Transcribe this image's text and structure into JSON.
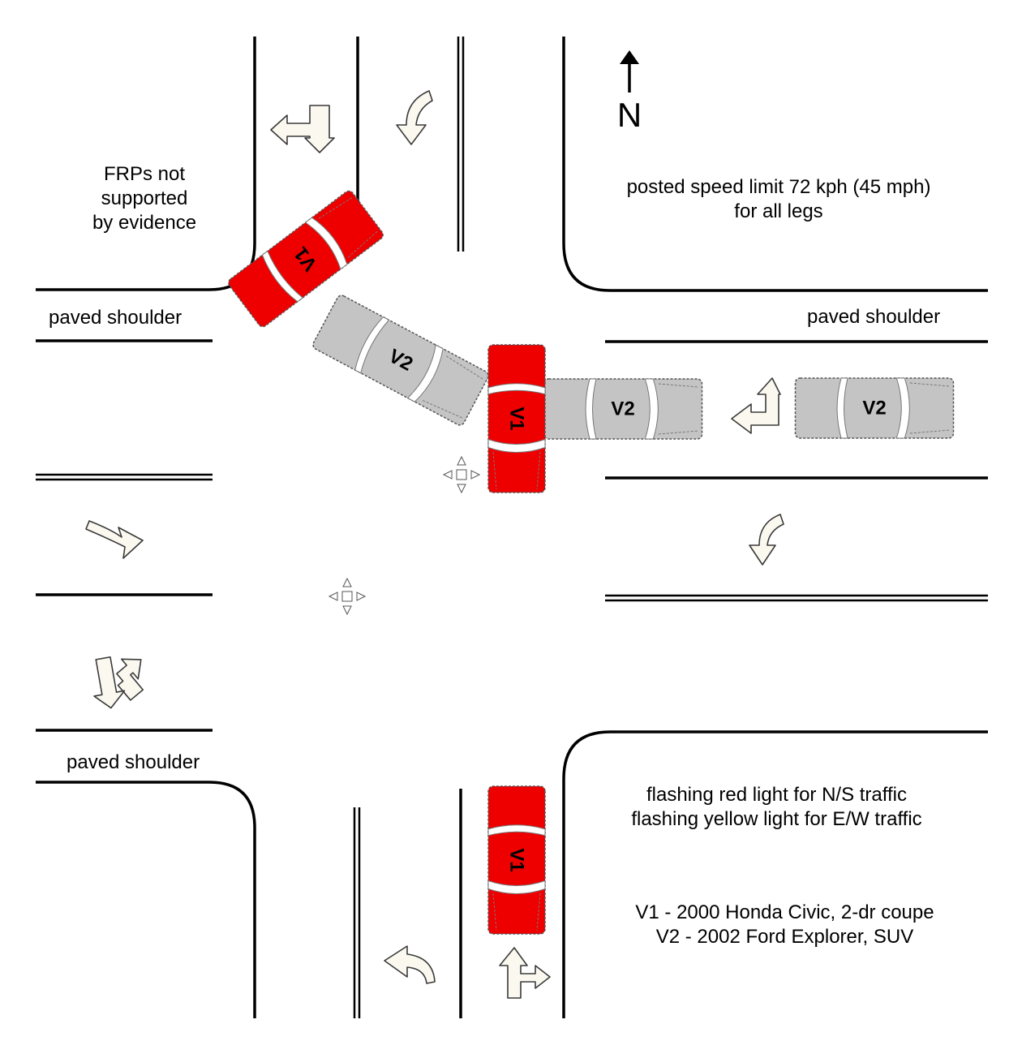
{
  "notes": {
    "frps": [
      "FRPs not",
      "supported",
      "by evidence"
    ],
    "speed": [
      "posted speed limit 72 kph (45 mph)",
      "for all legs"
    ],
    "lights": [
      "flashing red light for N/S traffic",
      "flashing yellow light for E/W traffic"
    ],
    "vehicles": [
      "V1 - 2000 Honda Civic, 2-dr coupe",
      "V2 - 2002 Ford Explorer, SUV"
    ]
  },
  "shoulders": {
    "west_upper": "paved shoulder",
    "east_upper": "paved shoulder",
    "west_lower": "paved shoulder"
  },
  "compass": {
    "label": "N"
  },
  "vehicles": {
    "v1": {
      "label": "V1",
      "color": "#ee0000"
    },
    "v2": {
      "label": "V2",
      "color": "#c4c4c4"
    }
  }
}
